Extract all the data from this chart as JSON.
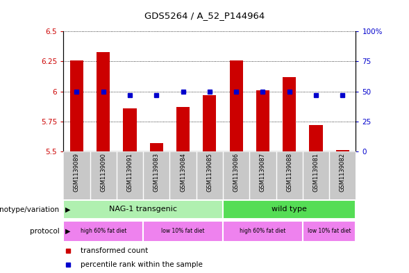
{
  "title": "GDS5264 / A_52_P144964",
  "samples": [
    "GSM1139089",
    "GSM1139090",
    "GSM1139091",
    "GSM1139083",
    "GSM1139084",
    "GSM1139085",
    "GSM1139086",
    "GSM1139087",
    "GSM1139088",
    "GSM1139081",
    "GSM1139082"
  ],
  "transformed_count": [
    6.26,
    6.33,
    5.86,
    5.57,
    5.87,
    5.97,
    6.26,
    6.01,
    6.12,
    5.72,
    5.51
  ],
  "percentile_rank": [
    50,
    50,
    47,
    47,
    50,
    50,
    50,
    50,
    50,
    47,
    47
  ],
  "red_color": "#cc0000",
  "blue_color": "#0000cc",
  "ylim_left": [
    5.5,
    6.5
  ],
  "ylim_right": [
    0,
    100
  ],
  "yticks_left": [
    5.5,
    5.75,
    6.0,
    6.25,
    6.5
  ],
  "yticks_right": [
    0,
    25,
    50,
    75,
    100
  ],
  "ytick_labels_left": [
    "5.5",
    "5.75",
    "6",
    "6.25",
    "6.5"
  ],
  "ytick_labels_right": [
    "0",
    "25",
    "50",
    "75",
    "100%"
  ],
  "genotype_groups": [
    {
      "label": "NAG-1 transgenic",
      "start": 0,
      "end": 5,
      "color": "#b0f0b0"
    },
    {
      "label": "wild type",
      "start": 6,
      "end": 10,
      "color": "#55dd55"
    }
  ],
  "protocol_groups": [
    {
      "label": "high 60% fat diet",
      "start": 0,
      "end": 2,
      "color": "#ee82ee"
    },
    {
      "label": "low 10% fat diet",
      "start": 3,
      "end": 5,
      "color": "#ee82ee"
    },
    {
      "label": "high 60% fat diet",
      "start": 6,
      "end": 8,
      "color": "#ee82ee"
    },
    {
      "label": "low 10% fat diet",
      "start": 9,
      "end": 10,
      "color": "#ee82ee"
    }
  ],
  "legend_items": [
    {
      "label": "transformed count",
      "color": "#cc0000"
    },
    {
      "label": "percentile rank within the sample",
      "color": "#0000cc"
    }
  ],
  "bar_width": 0.5,
  "bg_color": "#ffffff",
  "label_color_left": "#cc0000",
  "label_color_right": "#0000cc",
  "sample_bg_color": "#c8c8c8",
  "genotype_label": "genotype/variation",
  "protocol_label": "protocol"
}
